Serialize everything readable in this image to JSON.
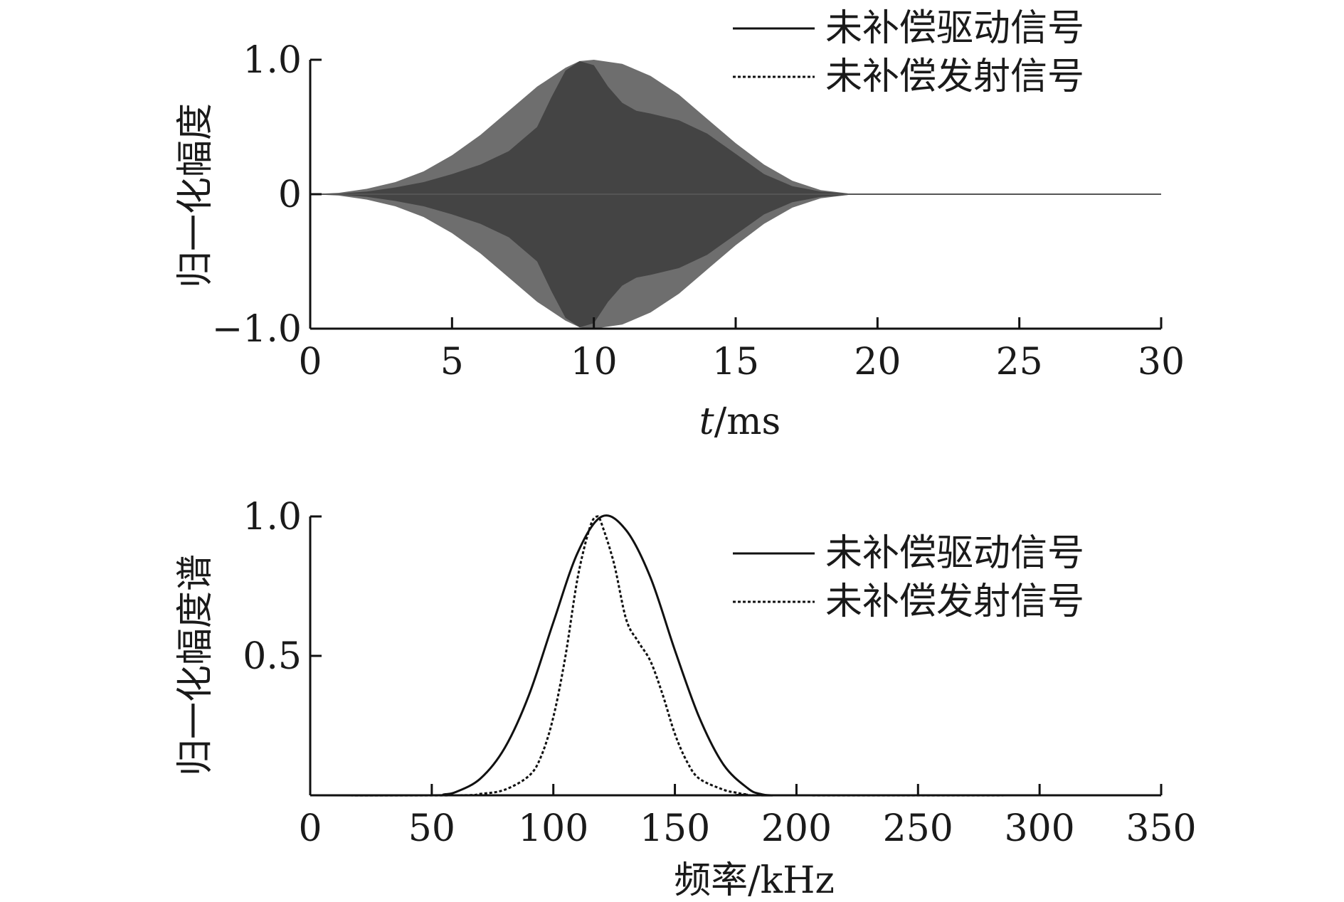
{
  "chart_data": [
    {
      "type": "area",
      "title": "",
      "xlabel_italic": "t",
      "xlabel_rest": "/ms",
      "ylabel": "归一化幅度",
      "xlim": [
        0,
        30
      ],
      "ylim": [
        -1.0,
        1.0
      ],
      "xticks": [
        0,
        5,
        10,
        15,
        20,
        25,
        30
      ],
      "xtick_labels": [
        "0",
        "5",
        "10",
        "15",
        "20",
        "25",
        "30"
      ],
      "yticks": [
        -1.0,
        0,
        1.0
      ],
      "ytick_labels": [
        "−1.0",
        "0",
        "1.0"
      ],
      "grid": false,
      "legend_position": "top-right",
      "series": [
        {
          "name": "未补偿驱动信号",
          "style": "solid",
          "color": "#6e6e6e",
          "x": [
            0,
            1,
            2,
            3,
            4,
            5,
            6,
            7,
            8,
            9,
            9.5,
            10,
            11,
            12,
            13,
            14,
            15,
            16,
            17,
            18,
            19,
            19.5,
            20,
            25,
            30
          ],
          "envelope": [
            0,
            0.01,
            0.04,
            0.09,
            0.17,
            0.29,
            0.44,
            0.62,
            0.8,
            0.94,
            0.99,
            1.0,
            0.97,
            0.88,
            0.74,
            0.56,
            0.38,
            0.22,
            0.1,
            0.03,
            0.005,
            0,
            0,
            0,
            0
          ]
        },
        {
          "name": "未补偿发射信号",
          "style": "dotted",
          "color": "#444444",
          "x": [
            0,
            1,
            2,
            3,
            4,
            5,
            6,
            7,
            8,
            8.5,
            9,
            9.5,
            10,
            10.5,
            11,
            11.5,
            12,
            13,
            14,
            15,
            16,
            17,
            18,
            19,
            20,
            25,
            30
          ],
          "envelope": [
            0,
            0.005,
            0.02,
            0.05,
            0.09,
            0.15,
            0.22,
            0.32,
            0.5,
            0.72,
            0.92,
            0.99,
            0.96,
            0.8,
            0.68,
            0.62,
            0.6,
            0.55,
            0.45,
            0.3,
            0.15,
            0.06,
            0.02,
            0.005,
            0,
            0,
            0
          ]
        }
      ]
    },
    {
      "type": "line",
      "title": "",
      "xlabel": "频率/kHz",
      "ylabel": "归一化幅度谱",
      "xlim": [
        0,
        350
      ],
      "ylim": [
        0,
        1.0
      ],
      "xticks": [
        0,
        50,
        100,
        150,
        200,
        250,
        300,
        350
      ],
      "xtick_labels": [
        "0",
        "50",
        "100",
        "150",
        "200",
        "250",
        "300",
        "350"
      ],
      "yticks": [
        0.5,
        1.0
      ],
      "ytick_labels": [
        "0.5",
        "1.0"
      ],
      "grid": false,
      "legend_position": "top-right",
      "series": [
        {
          "name": "未补偿驱动信号",
          "style": "solid",
          "color": "#111111",
          "x": [
            0,
            50,
            55,
            60,
            70,
            80,
            90,
            100,
            110,
            120,
            130,
            140,
            150,
            160,
            170,
            180,
            185,
            190,
            200,
            350
          ],
          "y": [
            0,
            0,
            0.003,
            0.012,
            0.06,
            0.17,
            0.36,
            0.62,
            0.87,
            1.0,
            0.95,
            0.78,
            0.52,
            0.28,
            0.11,
            0.025,
            0.005,
            0,
            0,
            0
          ]
        },
        {
          "name": "未补偿发射信号",
          "style": "dotted",
          "color": "#111111",
          "x": [
            0,
            60,
            70,
            80,
            90,
            95,
            100,
            105,
            110,
            115,
            118,
            120,
            125,
            130,
            135,
            140,
            145,
            150,
            155,
            160,
            170,
            175,
            180,
            190,
            350
          ],
          "y": [
            0,
            0,
            0.005,
            0.02,
            0.07,
            0.14,
            0.28,
            0.5,
            0.78,
            0.96,
            1.0,
            0.97,
            0.83,
            0.63,
            0.55,
            0.48,
            0.36,
            0.22,
            0.12,
            0.06,
            0.02,
            0.01,
            0.003,
            0,
            0
          ]
        }
      ]
    }
  ]
}
